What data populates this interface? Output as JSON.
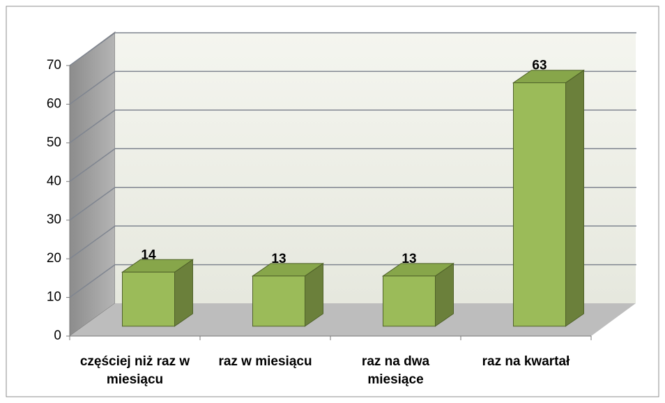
{
  "chart_data": {
    "type": "bar3d",
    "categories": [
      "częściej niż raz w miesiącu",
      "raz w miesiącu",
      "raz na dwa miesiące",
      "raz na kwartał"
    ],
    "values": [
      14,
      13,
      13,
      63
    ],
    "color": "#9bbb59",
    "ylim": [
      0,
      70
    ],
    "yticks": [
      0,
      10,
      20,
      30,
      40,
      50,
      60,
      70
    ],
    "grid": true
  }
}
